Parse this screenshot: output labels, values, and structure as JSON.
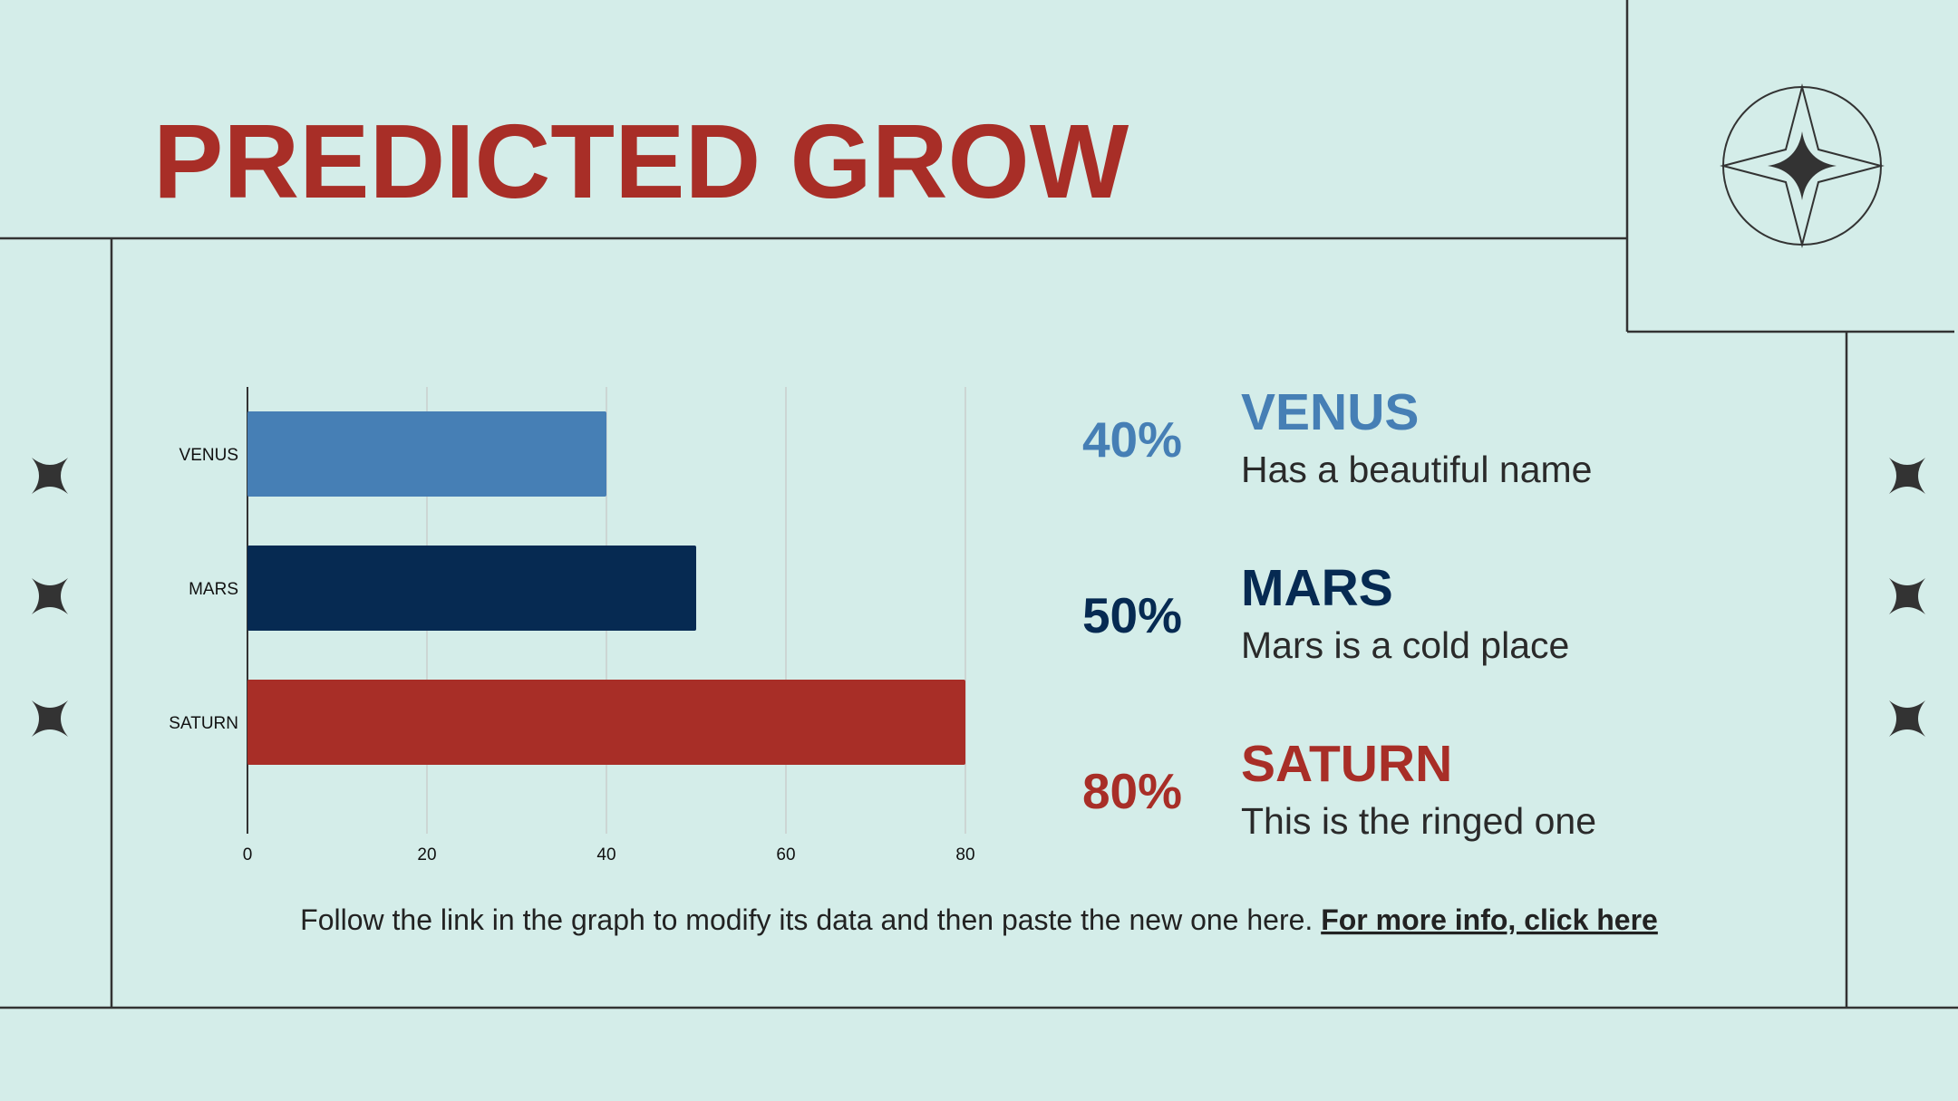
{
  "chart_data": {
    "type": "hbar",
    "title": "PREDICTED GROW",
    "categories": [
      "VENUS",
      "MARS",
      "SATURN"
    ],
    "values": [
      40,
      50,
      80
    ],
    "colors": [
      "#467fb5",
      "#062a52",
      "#a82e27"
    ],
    "xlim": [
      0,
      80
    ],
    "xticks": [
      0,
      20,
      40,
      60,
      80
    ],
    "grid": true
  },
  "panel": [
    {
      "value_label": "40%",
      "name": "VENUS",
      "description": "Has a beautiful name"
    },
    {
      "value_label": "50%",
      "name": "MARS",
      "description": "Mars is a cold place"
    },
    {
      "value_label": "80%",
      "name": "SATURN",
      "description": "This is the ringed one"
    }
  ],
  "footer": {
    "text": "Follow the link in the graph to modify its data and then paste the new one here.",
    "link": "For more info, click here"
  }
}
